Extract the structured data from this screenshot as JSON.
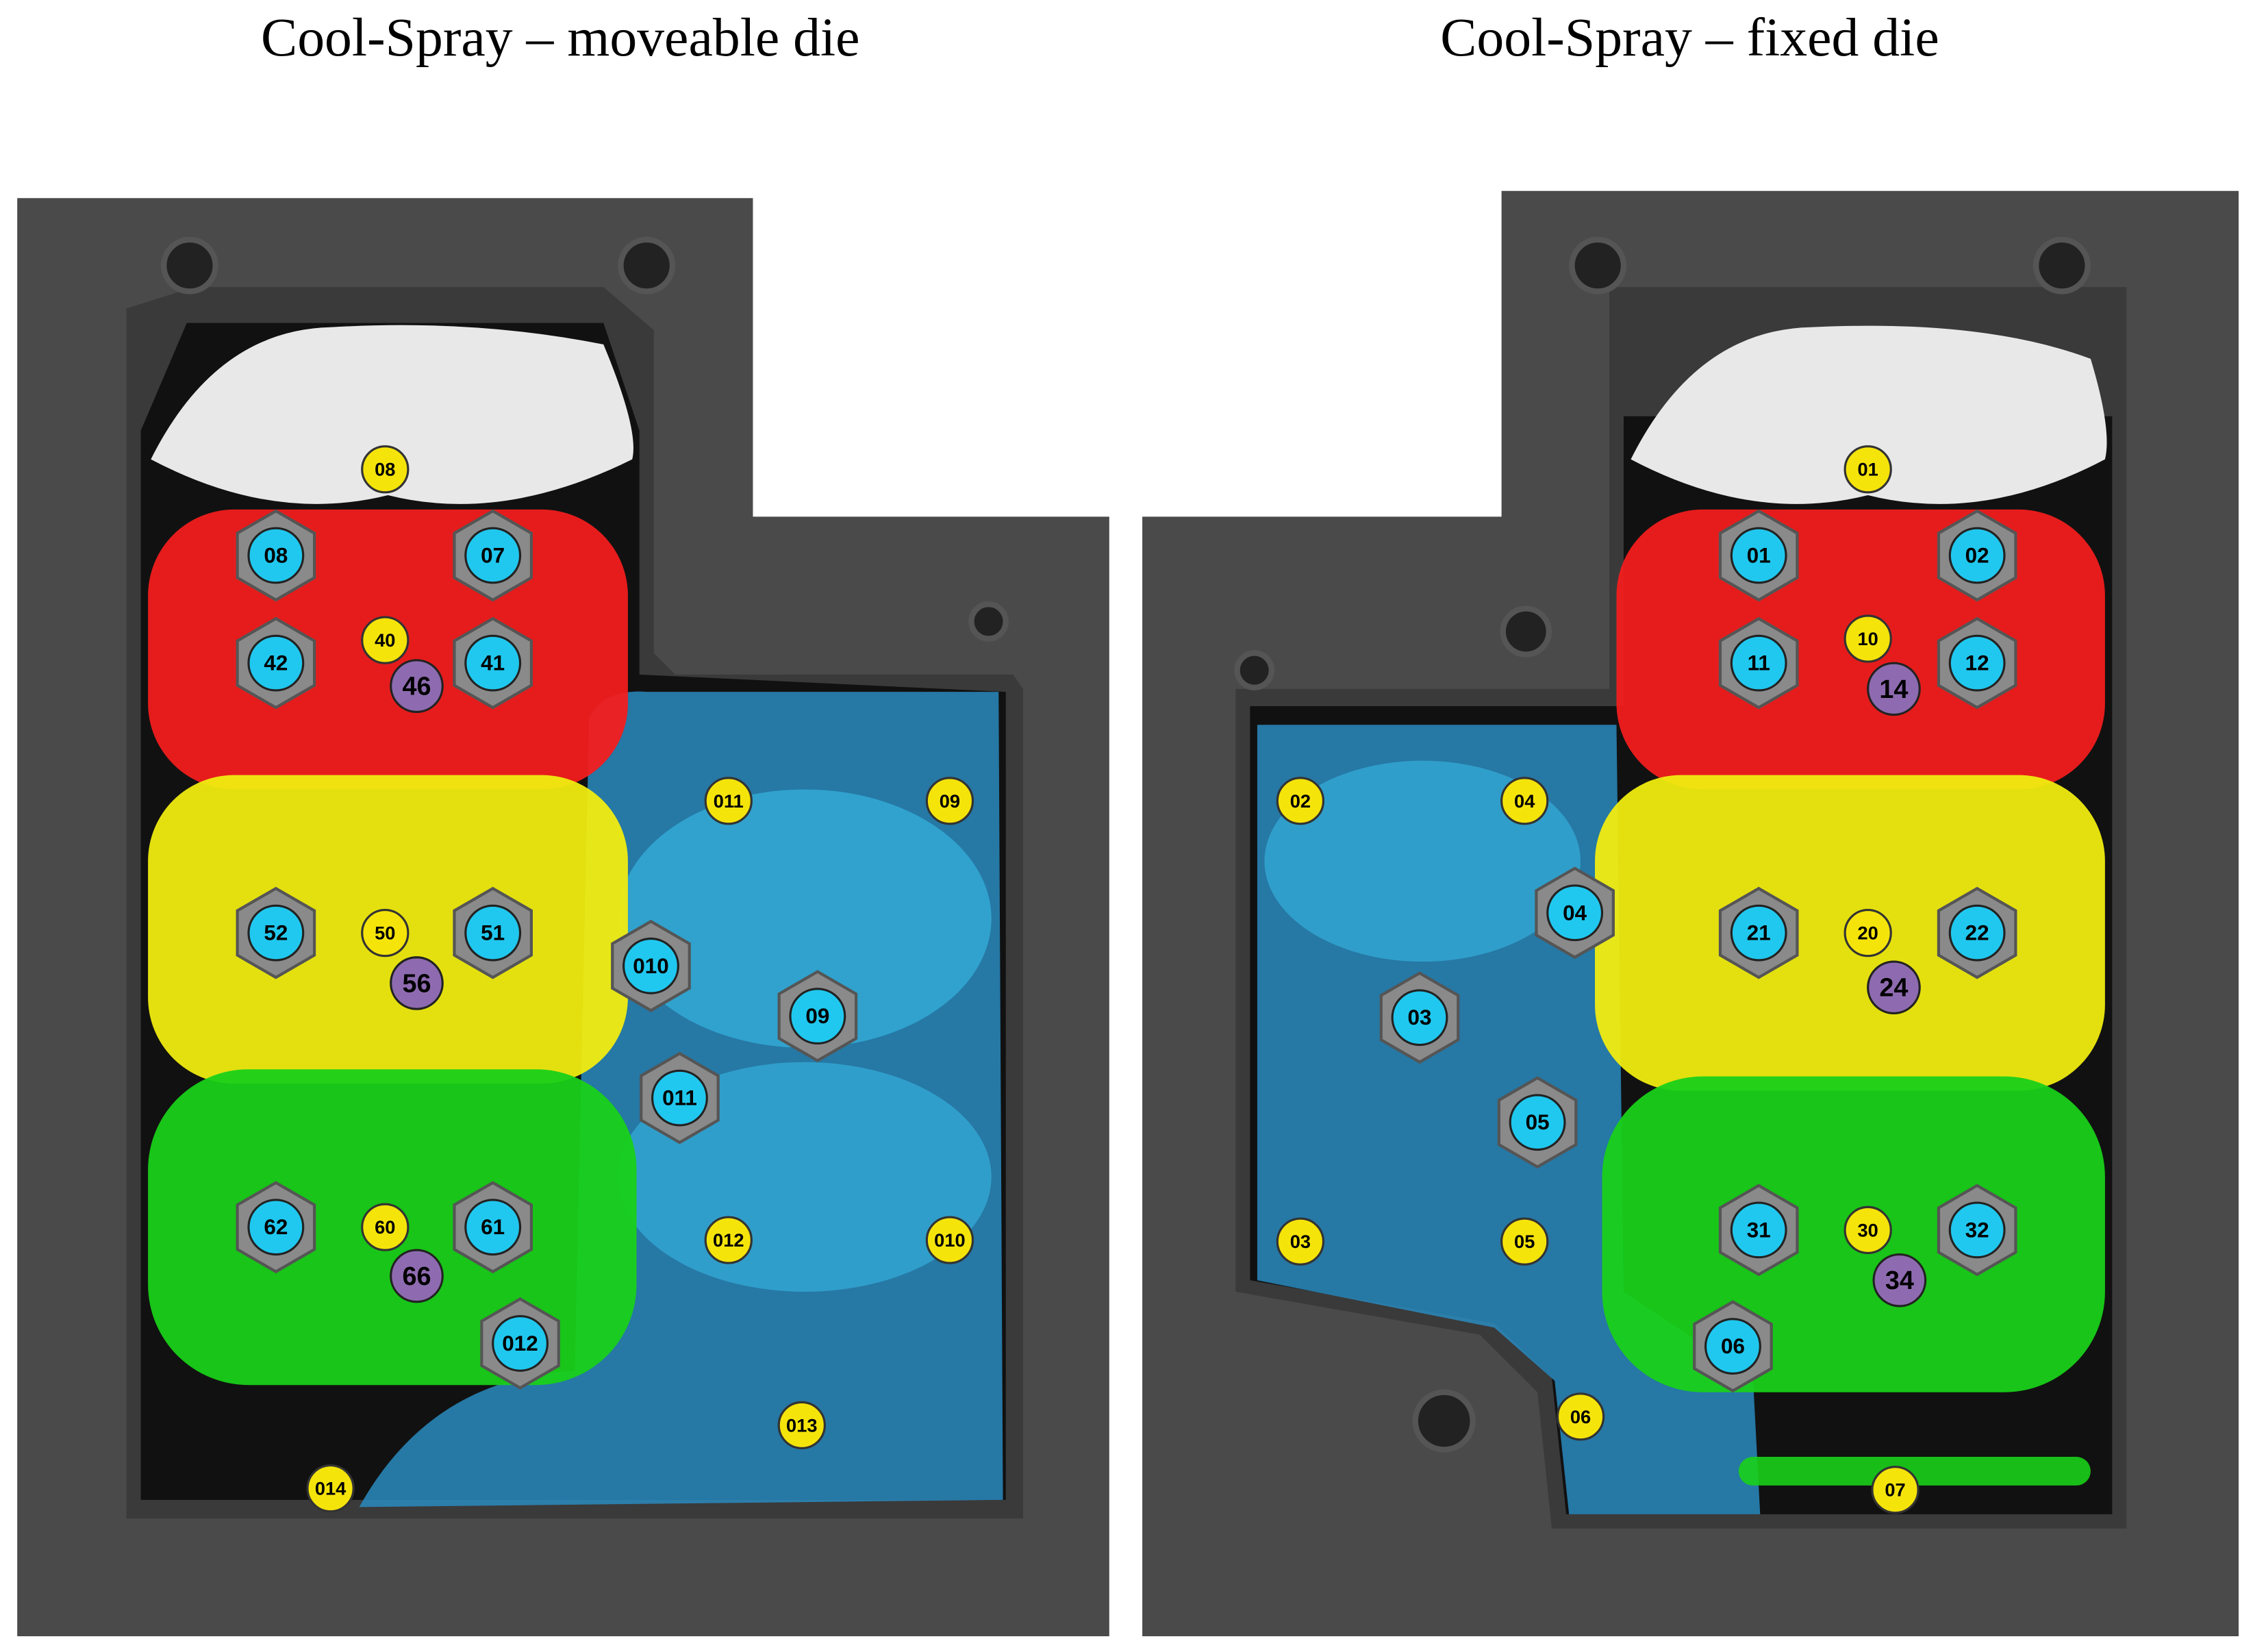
{
  "panels": [
    {
      "title": "Cool-Spray – moveable die",
      "yellow_markers": [
        "08",
        "011",
        "09",
        "012",
        "010",
        "013",
        "014",
        "40",
        "50",
        "60"
      ],
      "cyan_markers": [
        "08",
        "07",
        "42",
        "41",
        "52",
        "51",
        "010",
        "09",
        "011",
        "62",
        "61",
        "012"
      ],
      "purple_markers": [
        "46",
        "56",
        "66"
      ]
    },
    {
      "title": "Cool-Spray – fixed die",
      "yellow_markers": [
        "01",
        "02",
        "04",
        "03",
        "05",
        "06",
        "07",
        "10",
        "20",
        "30"
      ],
      "cyan_markers": [
        "01",
        "02",
        "11",
        "12",
        "04",
        "21",
        "22",
        "03",
        "05",
        "31",
        "32",
        "06"
      ],
      "purple_markers": [
        "14",
        "24",
        "34"
      ]
    }
  ]
}
